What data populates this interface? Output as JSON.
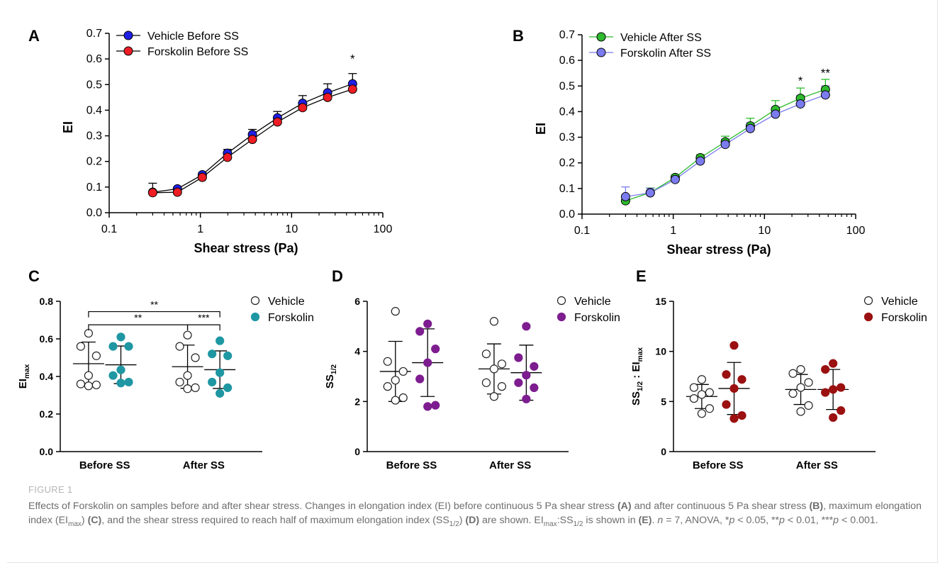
{
  "figure": {
    "label": "FIGURE 1",
    "caption": [
      {
        "t": "Effects of Forskolin on samples before and after shear stress. Changes in elongation index (EI) before continuous 5 Pa shear stress "
      },
      {
        "t": "(A)",
        "b": true
      },
      {
        "t": " and after continuous 5 Pa shear stress "
      },
      {
        "t": "(B)",
        "b": true
      },
      {
        "t": ", maximum elongation index (EI"
      },
      {
        "t": "max",
        "sub": true
      },
      {
        "t": ") "
      },
      {
        "t": "(C)",
        "b": true
      },
      {
        "t": ", and the shear stress required to reach half of maximum elongation index (SS"
      },
      {
        "t": "1/2",
        "sub": true
      },
      {
        "t": ") "
      },
      {
        "t": "(D)",
        "b": true
      },
      {
        "t": " are shown. EI"
      },
      {
        "t": "max",
        "sub": true
      },
      {
        "t": ":SS"
      },
      {
        "t": "1/2",
        "sub": true
      },
      {
        "t": " is shown in "
      },
      {
        "t": "(E)",
        "b": true
      },
      {
        "t": ". "
      },
      {
        "t": "n",
        "i": true
      },
      {
        "t": " = 7, ANOVA, *"
      },
      {
        "t": "p",
        "i": true
      },
      {
        "t": " < 0.05, **"
      },
      {
        "t": "p",
        "i": true
      },
      {
        "t": " < 0.01, ***"
      },
      {
        "t": "p",
        "i": true
      },
      {
        "t": " < 0.001."
      }
    ]
  },
  "chart_data": [
    {
      "panel": "A",
      "type": "line",
      "xlabel": "Shear stress (Pa)",
      "ylabel": "EI",
      "xscale": "log",
      "xlim": [
        0.1,
        100
      ],
      "ylim": [
        0,
        0.7
      ],
      "xticks": [
        "0.1",
        "1",
        "10",
        "100"
      ],
      "yticks": [
        "0.0",
        "0.1",
        "0.2",
        "0.3",
        "0.4",
        "0.5",
        "0.6",
        "0.7"
      ],
      "legend_position": "top-left",
      "x": [
        0.3,
        0.56,
        1.05,
        1.98,
        3.72,
        7.0,
        13.2,
        24.8,
        46.6
      ],
      "series": [
        {
          "name": "Vehicle Before SS",
          "color": "#1f1fe6",
          "values": [
            0.08,
            0.093,
            0.148,
            0.232,
            0.305,
            0.37,
            0.427,
            0.468,
            0.503
          ],
          "errors": [
            0.035,
            0.005,
            0.007,
            0.015,
            0.02,
            0.025,
            0.03,
            0.035,
            0.04
          ]
        },
        {
          "name": "Forskolin Before SS",
          "color": "#ee1c24",
          "values": [
            0.078,
            0.08,
            0.138,
            0.216,
            0.286,
            0.354,
            0.41,
            0.45,
            0.482
          ],
          "errors": [
            0.0,
            0.0,
            0.0,
            0.0,
            0.0,
            0.0,
            0.0,
            0.0,
            0.0
          ]
        }
      ],
      "annotations": [
        {
          "text": "*",
          "x": 46.6,
          "y": 0.585
        }
      ]
    },
    {
      "panel": "B",
      "type": "line",
      "xlabel": "Shear stress (Pa)",
      "ylabel": "EI",
      "xscale": "log",
      "xlim": [
        0.1,
        100
      ],
      "ylim": [
        0,
        0.7
      ],
      "xticks": [
        "0.1",
        "1",
        "10",
        "100"
      ],
      "yticks": [
        "0.0",
        "0.1",
        "0.2",
        "0.3",
        "0.4",
        "0.5",
        "0.6",
        "0.7"
      ],
      "legend_position": "top-left",
      "x": [
        0.3,
        0.56,
        1.05,
        1.98,
        3.72,
        7.0,
        13.2,
        24.8,
        46.6
      ],
      "series": [
        {
          "name": "Vehicle After SS",
          "color": "#2dbb2d",
          "values": [
            0.052,
            0.084,
            0.143,
            0.22,
            0.282,
            0.344,
            0.408,
            0.452,
            0.486
          ],
          "errors": [
            0.0,
            0.018,
            0.01,
            0.012,
            0.022,
            0.03,
            0.035,
            0.04,
            0.04
          ]
        },
        {
          "name": "Forskolin After SS",
          "color": "#7b7bf0",
          "values": [
            0.068,
            0.083,
            0.135,
            0.207,
            0.272,
            0.334,
            0.39,
            0.43,
            0.465
          ],
          "errors": [
            0.038,
            0.018,
            0.01,
            0.012,
            0.02,
            0.022,
            0.028,
            0.032,
            0.035
          ]
        }
      ],
      "annotations": [
        {
          "text": "*",
          "x": 24.8,
          "y": 0.505
        },
        {
          "text": "**",
          "x": 46.6,
          "y": 0.535
        }
      ]
    },
    {
      "panel": "C",
      "type": "scatter",
      "ylabel": "EI",
      "ylabel_sub": "max",
      "categories": [
        "Before SS",
        "After SS"
      ],
      "ylim": [
        0,
        0.8
      ],
      "yticks": [
        "0.0",
        "0.2",
        "0.4",
        "0.6",
        "0.8"
      ],
      "legend_position": "top-right",
      "series": [
        {
          "name": "Vehicle",
          "group": "Before SS",
          "color": "#ffffff",
          "mean": 0.468,
          "sd": 0.115,
          "points": [
            0.63,
            0.56,
            0.51,
            0.405,
            0.36,
            0.355,
            0.35
          ]
        },
        {
          "name": "Forskolin",
          "group": "Before SS",
          "color": "#1f97a3",
          "mean": 0.462,
          "sd": 0.1,
          "points": [
            0.61,
            0.56,
            0.56,
            0.435,
            0.405,
            0.37,
            0.365
          ]
        },
        {
          "name": "Vehicle",
          "group": "After SS",
          "color": "#ffffff",
          "mean": 0.452,
          "sd": 0.115,
          "points": [
            0.62,
            0.56,
            0.5,
            0.405,
            0.37,
            0.34,
            0.335
          ]
        },
        {
          "name": "Forskolin",
          "group": "After SS",
          "color": "#1f97a3",
          "mean": 0.436,
          "sd": 0.1,
          "points": [
            0.59,
            0.52,
            0.51,
            0.42,
            0.37,
            0.34,
            0.31
          ]
        }
      ],
      "brackets": [
        {
          "text": "**",
          "from": 0,
          "to": 3,
          "y": 0.745
        },
        {
          "text": "**",
          "from": 0,
          "to": 2,
          "y": 0.675
        },
        {
          "text": "***",
          "from": 2,
          "to": 3,
          "y": 0.675
        }
      ]
    },
    {
      "panel": "D",
      "type": "scatter",
      "ylabel": "SS",
      "ylabel_sub": "1/2",
      "categories": [
        "Before SS",
        "After SS"
      ],
      "ylim": [
        0,
        6
      ],
      "yticks": [
        "0",
        "2",
        "4",
        "6"
      ],
      "legend_position": "top-right",
      "series": [
        {
          "name": "Vehicle",
          "group": "Before SS",
          "color": "#ffffff",
          "mean": 3.2,
          "sd": 1.2,
          "points": [
            5.6,
            3.6,
            3.2,
            2.85,
            2.6,
            2.15,
            2.05
          ]
        },
        {
          "name": "Forskolin",
          "group": "Before SS",
          "color": "#7d1d8f",
          "mean": 3.55,
          "sd": 1.35,
          "points": [
            5.1,
            4.8,
            4.1,
            3.55,
            2.9,
            1.85,
            1.8
          ]
        },
        {
          "name": "Vehicle",
          "group": "After SS",
          "color": "#ffffff",
          "mean": 3.3,
          "sd": 1.0,
          "points": [
            5.2,
            3.9,
            3.5,
            3.3,
            2.75,
            2.6,
            2.2
          ]
        },
        {
          "name": "Forskolin",
          "group": "After SS",
          "color": "#7d1d8f",
          "mean": 3.15,
          "sd": 1.1,
          "points": [
            5.0,
            3.75,
            3.4,
            3.05,
            2.75,
            2.55,
            2.1
          ]
        }
      ]
    },
    {
      "panel": "E",
      "type": "scatter",
      "ylabel": "SS",
      "ylabel_sub": "1/2",
      "ylabel_mid": " : EI",
      "ylabel_sub2": "max",
      "categories": [
        "Before SS",
        "After SS"
      ],
      "ylim": [
        0,
        15
      ],
      "yticks": [
        "0",
        "5",
        "10",
        "15"
      ],
      "legend_position": "top-right",
      "series": [
        {
          "name": "Vehicle",
          "group": "Before SS",
          "color": "#ffffff",
          "mean": 5.5,
          "sd": 1.2,
          "points": [
            7.2,
            6.4,
            5.9,
            5.7,
            5.3,
            4.3,
            3.8
          ]
        },
        {
          "name": "Forskolin",
          "group": "Before SS",
          "color": "#9b1010",
          "mean": 6.3,
          "sd": 2.6,
          "points": [
            10.6,
            7.7,
            7.2,
            6.3,
            4.7,
            3.6,
            3.3
          ]
        },
        {
          "name": "Vehicle",
          "group": "After SS",
          "color": "#ffffff",
          "mean": 6.2,
          "sd": 1.5,
          "points": [
            8.2,
            7.8,
            6.9,
            6.4,
            5.8,
            4.6,
            4.0
          ]
        },
        {
          "name": "Forskolin",
          "group": "After SS",
          "color": "#9b1010",
          "mean": 6.2,
          "sd": 2.0,
          "points": [
            8.8,
            8.2,
            6.4,
            6.2,
            5.9,
            4.1,
            3.4
          ]
        }
      ]
    }
  ]
}
